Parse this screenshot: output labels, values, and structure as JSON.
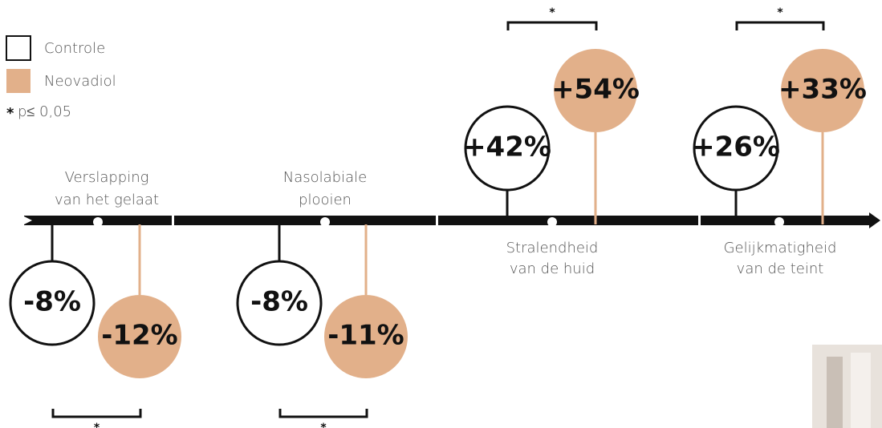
{
  "legend": {
    "items": [
      "Controle",
      "Neovadiol"
    ],
    "note_symbol": "*",
    "note_text": "p≤ 0,05"
  },
  "groups": [
    {
      "label": [
        "Verslapping",
        "van het gelaat"
      ],
      "control": "-8%",
      "neovadiol": "-12%",
      "significance": "*"
    },
    {
      "label": [
        "Nasolabiale",
        "plooien"
      ],
      "control": "-8%",
      "neovadiol": "-11%",
      "significance": "*"
    },
    {
      "label": [
        "Stralendheid",
        "van de huid"
      ],
      "control": "+42%",
      "neovadiol": "+54%",
      "significance": "*"
    },
    {
      "label": [
        "Gelijkmatigheid",
        "van de teint"
      ],
      "control": "+26%",
      "neovadiol": "+33%",
      "significance": "*"
    }
  ]
}
